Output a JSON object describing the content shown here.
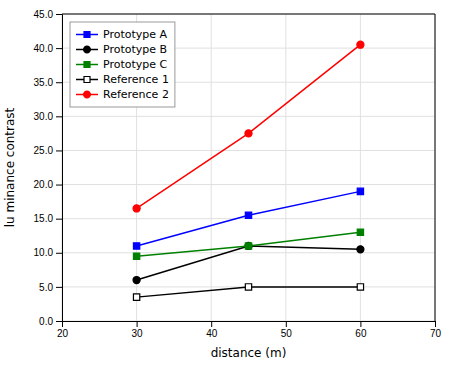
{
  "chart_data": {
    "type": "line",
    "xlabel": "distance (m)",
    "ylabel": "lu minance contrast",
    "x": [
      30,
      45,
      60
    ],
    "series": [
      {
        "name": "Prototype A",
        "color": "#0000FF",
        "marker": "square",
        "values": [
          11,
          15.5,
          19
        ]
      },
      {
        "name": "Prototype B",
        "color": "#000000",
        "marker": "circle",
        "values": [
          6,
          11,
          10.5
        ]
      },
      {
        "name": "Prototype C",
        "color": "#008000",
        "marker": "square",
        "values": [
          9.5,
          11,
          13
        ]
      },
      {
        "name": "Reference 1",
        "color": "#000000",
        "marker": "square-open",
        "values": [
          3.5,
          5,
          5
        ]
      },
      {
        "name": "Reference 2",
        "color": "#FF0000",
        "marker": "circle",
        "values": [
          16.5,
          27.5,
          40.5
        ]
      }
    ],
    "xlim": [
      20,
      70
    ],
    "ylim": [
      0.0,
      45.0
    ],
    "xticks": [
      20,
      30,
      40,
      50,
      60,
      70
    ],
    "yticks": [
      {
        "value": 0,
        "label": "0.0"
      },
      {
        "value": 5,
        "label": "5.0"
      },
      {
        "value": 10,
        "label": "10.0"
      },
      {
        "value": 15,
        "label": "15.0"
      },
      {
        "value": 20,
        "label": "20.0"
      },
      {
        "value": 25,
        "label": "25.0"
      },
      {
        "value": 30,
        "label": "30.0"
      },
      {
        "value": 35,
        "label": "35.0"
      },
      {
        "value": 40,
        "label": "40.0"
      },
      {
        "value": 45,
        "label": "45.0"
      }
    ],
    "grid": true,
    "legend": "top-left"
  }
}
